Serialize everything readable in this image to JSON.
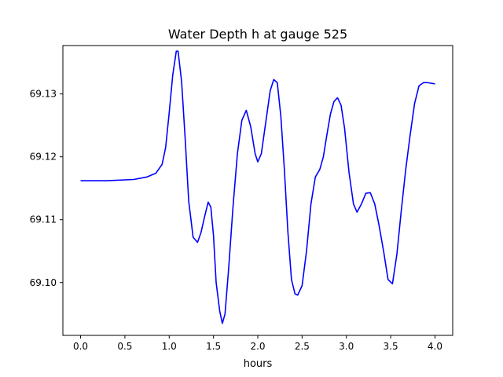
{
  "chart_data": {
    "type": "line",
    "title": "Water Depth h at gauge 525",
    "xlabel": "hours",
    "ylabel": "",
    "xlim": [
      -0.2,
      4.2
    ],
    "ylim": [
      69.0916,
      69.1377
    ],
    "x_ticks": [
      0.0,
      0.5,
      1.0,
      1.5,
      2.0,
      2.5,
      3.0,
      3.5,
      4.0
    ],
    "x_tick_labels": [
      "0.0",
      "0.5",
      "1.0",
      "1.5",
      "2.0",
      "2.5",
      "3.0",
      "3.5",
      "4.0"
    ],
    "y_ticks": [
      69.1,
      69.11,
      69.12,
      69.13
    ],
    "y_tick_labels": [
      "69.10",
      "69.11",
      "69.12",
      "69.13"
    ],
    "grid": false,
    "legend": "none",
    "series": [
      {
        "color": "#0000ff",
        "x": [
          0.0,
          0.3,
          0.6,
          0.75,
          0.85,
          0.92,
          0.96,
          1.0,
          1.04,
          1.08,
          1.1,
          1.14,
          1.18,
          1.22,
          1.27,
          1.32,
          1.36,
          1.4,
          1.44,
          1.47,
          1.5,
          1.53,
          1.57,
          1.6,
          1.63,
          1.67,
          1.72,
          1.77,
          1.82,
          1.87,
          1.92,
          1.97,
          2.0,
          2.04,
          2.09,
          2.14,
          2.18,
          2.22,
          2.26,
          2.3,
          2.34,
          2.38,
          2.42,
          2.45,
          2.5,
          2.55,
          2.6,
          2.65,
          2.7,
          2.74,
          2.78,
          2.82,
          2.86,
          2.9,
          2.94,
          2.98,
          3.03,
          3.08,
          3.12,
          3.17,
          3.22,
          3.27,
          3.32,
          3.37,
          3.42,
          3.47,
          3.52,
          3.57,
          3.62,
          3.67,
          3.72,
          3.77,
          3.82,
          3.87,
          3.92,
          3.96,
          4.0
        ],
        "y": [
          69.1162,
          69.1162,
          69.1164,
          69.1168,
          69.1174,
          69.1188,
          69.1215,
          69.127,
          69.133,
          69.1368,
          69.1368,
          69.132,
          69.123,
          69.113,
          69.1072,
          69.1064,
          69.108,
          69.1105,
          69.1128,
          69.112,
          69.1075,
          69.1,
          69.0955,
          69.0935,
          69.095,
          69.102,
          69.112,
          69.1205,
          69.1258,
          69.1274,
          69.1248,
          69.1205,
          69.1192,
          69.1205,
          69.1255,
          69.1305,
          69.1323,
          69.1318,
          69.1265,
          69.118,
          69.108,
          69.1005,
          69.0982,
          69.098,
          69.0995,
          69.105,
          69.1125,
          69.1168,
          69.118,
          69.12,
          69.1235,
          69.1268,
          69.1288,
          69.1294,
          69.1282,
          69.1245,
          69.1175,
          69.1125,
          69.1112,
          69.1125,
          69.1142,
          69.1143,
          69.1125,
          69.109,
          69.105,
          69.1005,
          69.0998,
          69.1045,
          69.1115,
          69.118,
          69.1235,
          69.1285,
          69.1313,
          69.1318,
          69.1318,
          69.1317,
          69.1316
        ]
      }
    ]
  }
}
